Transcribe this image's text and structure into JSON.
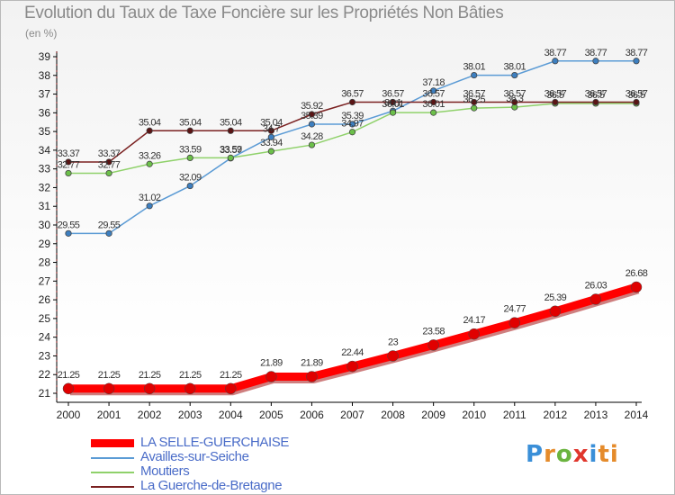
{
  "header": {
    "title": "Evolution du Taux de Taxe Foncière sur les Propriétés Non Bâties",
    "unit": "(en %)"
  },
  "logo": {
    "text": "Proxiti"
  },
  "chart_data": {
    "type": "line",
    "title": "Evolution du Taux de Taxe Foncière sur les Propriétés Non Bâties",
    "ylabel": "(en %)",
    "xlabel": "",
    "x": [
      "2000",
      "2001",
      "2002",
      "2003",
      "2004",
      "2005",
      "2006",
      "2007",
      "2008",
      "2009",
      "2010",
      "2011",
      "2012",
      "2013",
      "2014"
    ],
    "ylim": [
      21,
      39
    ],
    "yticks": [
      21,
      22,
      23,
      24,
      25,
      26,
      27,
      28,
      29,
      30,
      31,
      32,
      33,
      34,
      35,
      36,
      37,
      38,
      39
    ],
    "grid": false,
    "legend_position": "bottom-left",
    "series": [
      {
        "name": "LA SELLE-GUERCHAISE",
        "color": "#ff0000",
        "marker_color": "#e00000",
        "emphasis": true,
        "values": [
          21.25,
          21.25,
          21.25,
          21.25,
          21.25,
          21.89,
          21.89,
          22.44,
          23,
          23.58,
          24.17,
          24.77,
          25.39,
          26.03,
          26.68
        ],
        "labels": [
          "21.25",
          "21.25",
          "21.25",
          "21.25",
          "21.25",
          "21.89",
          "21.89",
          "22.44",
          "23",
          "23.58",
          "24.17",
          "24.77",
          "25.39",
          "26.03",
          "26.68"
        ]
      },
      {
        "name": "Availles-sur-Seiche",
        "color": "#5b9bd5",
        "marker_color": "#3d7fc0",
        "emphasis": false,
        "values": [
          29.55,
          29.55,
          31.02,
          32.09,
          33.57,
          34.7,
          35.39,
          35.39,
          36.1,
          37.18,
          38.01,
          38.01,
          38.77,
          38.77,
          38.77
        ],
        "labels": [
          "29.55",
          "29.55",
          "31.02",
          "32.09",
          "33.57",
          "34.7",
          "35.39",
          "35.39",
          "36.1",
          "37.18",
          "38.01",
          "38.01",
          "38.77",
          "38.77",
          "38.77"
        ]
      },
      {
        "name": "Moutiers",
        "color": "#8fd16a",
        "marker_color": "#6cc04a",
        "emphasis": false,
        "values": [
          32.77,
          32.77,
          33.26,
          33.59,
          33.59,
          33.94,
          34.28,
          34.97,
          36.01,
          36.01,
          36.25,
          36.3,
          36.5,
          36.5,
          36.5
        ],
        "labels": [
          "32.77",
          "32.77",
          "33.26",
          "33.59",
          "33.59",
          "33.94",
          "34.28",
          "34.97",
          "36.01",
          "36.01",
          "36.25",
          "36.3",
          "36.5",
          "36.5",
          "36.5"
        ]
      },
      {
        "name": "La Guerche-de-Bretagne",
        "color": "#7a2020",
        "marker_color": "#5a1414",
        "emphasis": false,
        "values": [
          33.37,
          33.37,
          35.04,
          35.04,
          35.04,
          35.04,
          35.92,
          36.57,
          36.57,
          36.57,
          36.57,
          36.57,
          36.57,
          36.57,
          36.57
        ],
        "labels": [
          "33.37",
          "33.37",
          "35.04",
          "35.04",
          "35.04",
          "35.04",
          "35.92",
          "36.57",
          "36.57",
          "36.57",
          "36.57",
          "36.57",
          "36.57",
          "36.57",
          "36.57"
        ]
      }
    ]
  }
}
